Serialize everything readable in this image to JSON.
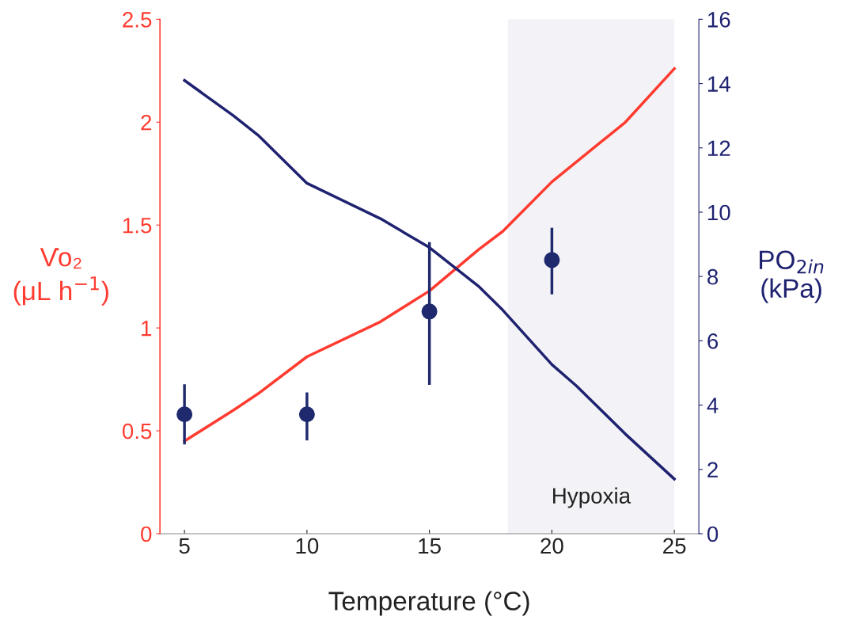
{
  "chart_data": {
    "type": "line",
    "xlabel": "Temperature (°C)",
    "ylabel": "V̇o₂\n(μL h$^{−1}$)",
    "y2label": "PO$_{2in}$\n(kPa)",
    "xlim": [
      4,
      26
    ],
    "xticks": [
      5,
      10,
      15,
      20,
      25
    ],
    "ylim": [
      0,
      2.5
    ],
    "yticks": [
      0,
      0.5,
      1,
      1.5,
      2,
      2.5
    ],
    "y2lim": [
      0,
      16
    ],
    "y2ticks": [
      0,
      2,
      4,
      6,
      8,
      10,
      12,
      14,
      16
    ],
    "grid": false,
    "legend": false,
    "bands": [
      {
        "axis": "x",
        "from": 18.2,
        "to": 25,
        "label": "Hypoxia",
        "color": "#f3f3f7"
      }
    ],
    "series": [
      {
        "color": "#ff3b30",
        "x": [
          5,
          7,
          8,
          10,
          13,
          15,
          17,
          18,
          20,
          23,
          25
        ],
        "values": [
          0.45,
          0.6,
          0.68,
          0.86,
          1.03,
          1.18,
          1.38,
          1.47,
          1.71,
          2.0,
          2.26
        ]
      },
      {
        "axis": "y2",
        "color": "#1f2270",
        "x": [
          5,
          7,
          8,
          10,
          13,
          15,
          17,
          18,
          20,
          21,
          23,
          25
        ],
        "values": [
          14.1,
          13.0,
          12.4,
          10.9,
          9.8,
          8.9,
          7.7,
          6.95,
          5.26,
          4.6,
          3.1,
          1.7
        ]
      },
      {
        "type": "scatter",
        "marker": "circle",
        "color": "#1f2a6e",
        "x": [
          5,
          10,
          15,
          20
        ],
        "values": [
          0.58,
          0.58,
          1.08,
          1.33
        ],
        "errors": [
          [
            0.44,
            0.72
          ],
          [
            0.46,
            0.68
          ],
          [
            0.73,
            1.41
          ],
          [
            1.17,
            1.48
          ]
        ]
      }
    ]
  }
}
